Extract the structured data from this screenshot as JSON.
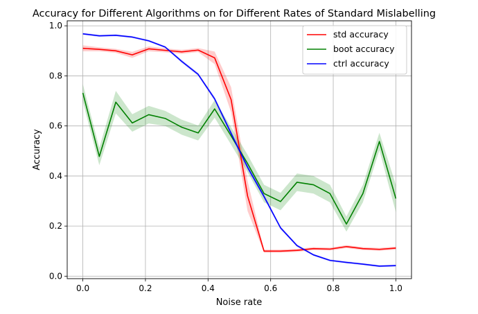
{
  "chart_data": {
    "type": "line",
    "title": "Accuracy for Different Algorithms on for Different Rates of Standard Mislabelling",
    "xlabel": "Noise rate",
    "ylabel": "Accuracy",
    "xlim": [
      -0.05,
      1.05
    ],
    "ylim": [
      -0.01,
      1.02
    ],
    "xticks": [
      0.0,
      0.2,
      0.4,
      0.6,
      0.8,
      1.0
    ],
    "xtick_labels": [
      "0.0",
      "0.2",
      "0.4",
      "0.6",
      "0.8",
      "1.0"
    ],
    "yticks": [
      0.0,
      0.2,
      0.4,
      0.6,
      0.8,
      1.0
    ],
    "ytick_labels": [
      "0.0",
      "0.2",
      "0.4",
      "0.6",
      "0.8",
      "1.0"
    ],
    "grid": true,
    "legend_position": "top-right",
    "x": [
      0.0,
      0.0526,
      0.1053,
      0.1579,
      0.2105,
      0.2632,
      0.3158,
      0.3684,
      0.4211,
      0.4737,
      0.5263,
      0.5789,
      0.6316,
      0.6842,
      0.7368,
      0.7895,
      0.8421,
      0.8947,
      0.9474,
      1.0
    ],
    "series": [
      {
        "name": "std accuracy",
        "color": "#ff0000",
        "values": [
          0.91,
          0.906,
          0.9,
          0.884,
          0.908,
          0.902,
          0.896,
          0.903,
          0.872,
          0.705,
          0.32,
          0.1,
          0.1,
          0.103,
          0.11,
          0.108,
          0.118,
          0.11,
          0.107,
          0.112
        ],
        "band": [
          0.012,
          0.008,
          0.008,
          0.012,
          0.01,
          0.008,
          0.008,
          0.008,
          0.025,
          0.05,
          0.06,
          0.006,
          0.006,
          0.006,
          0.006,
          0.006,
          0.006,
          0.006,
          0.006,
          0.006
        ]
      },
      {
        "name": "boot accuracy",
        "color": "#008000",
        "values": [
          0.732,
          0.478,
          0.695,
          0.612,
          0.645,
          0.63,
          0.595,
          0.572,
          0.668,
          0.56,
          0.45,
          0.33,
          0.298,
          0.375,
          0.365,
          0.33,
          0.208,
          0.33,
          0.538,
          0.31
        ],
        "band": [
          0.035,
          0.035,
          0.045,
          0.035,
          0.035,
          0.03,
          0.03,
          0.03,
          0.035,
          0.035,
          0.035,
          0.035,
          0.035,
          0.035,
          0.035,
          0.035,
          0.03,
          0.035,
          0.035,
          0.055
        ]
      },
      {
        "name": "ctrl accuracy",
        "color": "#0000ff",
        "values": [
          0.968,
          0.96,
          0.962,
          0.955,
          0.94,
          0.915,
          0.858,
          0.806,
          0.708,
          0.57,
          0.435,
          0.318,
          0.193,
          0.122,
          0.085,
          0.063,
          0.055,
          0.048,
          0.04,
          0.042
        ],
        "band": [
          0.004,
          0.004,
          0.004,
          0.004,
          0.004,
          0.004,
          0.006,
          0.006,
          0.008,
          0.01,
          0.01,
          0.008,
          0.006,
          0.005,
          0.004,
          0.004,
          0.004,
          0.004,
          0.004,
          0.004
        ]
      }
    ]
  }
}
